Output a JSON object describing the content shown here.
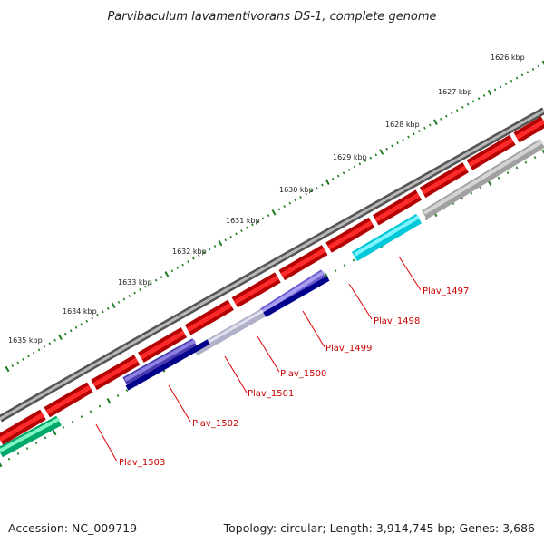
{
  "header": {
    "title": "Parvibaculum lavamentivorans DS-1, complete genome"
  },
  "footer": {
    "accession": "Accession: NC_009719",
    "stats": "Topology: circular; Length: 3,914,745 bp; Genes: 3,686"
  },
  "colors": {
    "backbone": "#7a7a7a",
    "tick": "#1f7a1f",
    "forward_gene": "#ee0000",
    "label_text": "#cc0000",
    "leader_line": "#dd0000"
  },
  "scale_labels": [
    "1626 kbp",
    "1627 kbp",
    "1628 kbp",
    "1629 kbp",
    "1630 kbp",
    "1631 kbp",
    "1632 kbp",
    "1633 kbp",
    "1634 kbp",
    "1635 kbp"
  ],
  "gene_labels": [
    "Plav_1497",
    "Plav_1498",
    "Plav_1499",
    "Plav_1500",
    "Plav_1501",
    "Plav_1502",
    "Plav_1503"
  ],
  "gene_icons": [
    "cds-arrow-icon"
  ]
}
